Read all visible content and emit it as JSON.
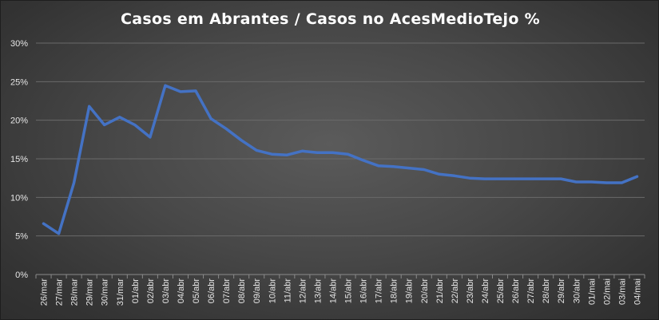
{
  "chart_data": {
    "type": "line",
    "title": "Casos em Abrantes / Casos no AcesMedioTejo %",
    "xlabel": "",
    "ylabel": "",
    "ylim": [
      0,
      30
    ],
    "yticks": [
      "0%",
      "5%",
      "10%",
      "15%",
      "20%",
      "25%",
      "30%"
    ],
    "grid": true,
    "legend": "none",
    "line_color": "#4472C4",
    "categories": [
      "26/mar",
      "27/mar",
      "28/mar",
      "29/mar",
      "30/mar",
      "31/mar",
      "01/abr",
      "02/abr",
      "03/abr",
      "04/abr",
      "05/abr",
      "06/abr",
      "07/abr",
      "08/abr",
      "09/abr",
      "10/abr",
      "11/abr",
      "12/abr",
      "13/abr",
      "14/abr",
      "15/abr",
      "16/abr",
      "17/abr",
      "18/abr",
      "19/abr",
      "20/abr",
      "21/abr",
      "22/abr",
      "23/abr",
      "24/abr",
      "25/abr",
      "26/abr",
      "27/abr",
      "28/abr",
      "29/abr",
      "30/abr",
      "01/mai",
      "02/mai",
      "03/mai",
      "04/mai"
    ],
    "values": [
      6.6,
      5.3,
      11.9,
      21.8,
      19.4,
      20.4,
      19.4,
      17.8,
      24.5,
      23.7,
      23.8,
      20.2,
      18.9,
      17.4,
      16.1,
      15.6,
      15.5,
      16.0,
      15.8,
      15.8,
      15.6,
      14.8,
      14.1,
      14.0,
      13.8,
      13.6,
      13.0,
      12.8,
      12.5,
      12.4,
      12.4,
      12.4,
      12.4,
      12.4,
      12.4,
      12.0,
      12.0,
      11.9,
      11.9,
      12.7
    ]
  }
}
